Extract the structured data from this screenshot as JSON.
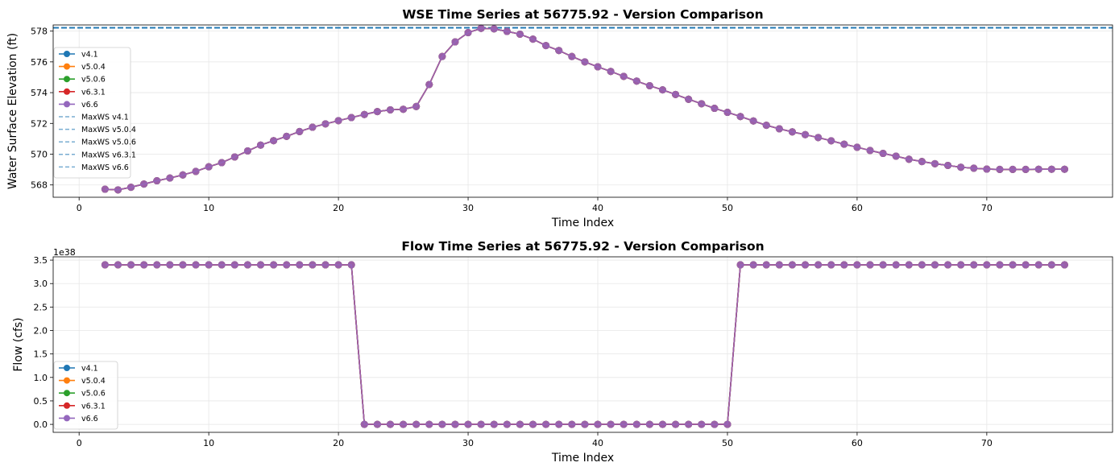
{
  "colors": {
    "v4.1": "#1f77b4",
    "v5.0.4": "#ff7f0e",
    "v5.0.6": "#2ca02c",
    "v6.3.1": "#d62728",
    "v6.6": "#9467bd",
    "overlay_line": "#9b5fb0",
    "maxws_line": "#1f77b4"
  },
  "chart_data": [
    {
      "type": "line",
      "title": "WSE Time Series at 56775.92 - Version Comparison",
      "xlabel": "Time Index",
      "ylabel": "Water Surface Elevation (ft)",
      "xlim": [
        -2,
        79.7
      ],
      "ylim": [
        567.2,
        578.4
      ],
      "xticks": [
        0,
        10,
        20,
        30,
        40,
        50,
        60,
        70
      ],
      "yticks": [
        568,
        570,
        572,
        574,
        576,
        578
      ],
      "grid": true,
      "legend_position": "center-left",
      "legend": [
        "v4.1",
        "v5.0.4",
        "v5.0.6",
        "v6.3.1",
        "v6.6",
        "MaxWS v4.1",
        "MaxWS v5.0.4",
        "MaxWS v5.0.6",
        "MaxWS v6.3.1",
        "MaxWS v6.6"
      ],
      "x": [
        2,
        3,
        4,
        5,
        6,
        7,
        8,
        9,
        10,
        11,
        12,
        13,
        14,
        15,
        16,
        17,
        18,
        19,
        20,
        21,
        22,
        23,
        24,
        25,
        26,
        27,
        28,
        29,
        30,
        31,
        32,
        33,
        34,
        35,
        36,
        37,
        38,
        39,
        40,
        41,
        42,
        43,
        44,
        45,
        46,
        47,
        48,
        49,
        50,
        51,
        52,
        53,
        54,
        55,
        56,
        57,
        58,
        59,
        60,
        61,
        62,
        63,
        64,
        65,
        66,
        67,
        68,
        69,
        70,
        71,
        72,
        73,
        74,
        75,
        76
      ],
      "series": [
        {
          "name": "v4.1",
          "values": [
            567.72,
            567.68,
            567.85,
            568.06,
            568.27,
            568.45,
            568.65,
            568.88,
            569.18,
            569.45,
            569.82,
            570.21,
            570.59,
            570.88,
            571.16,
            571.47,
            571.75,
            571.97,
            572.18,
            572.38,
            572.58,
            572.77,
            572.88,
            572.92,
            573.1,
            574.53,
            576.35,
            577.3,
            577.9,
            578.18,
            578.15,
            577.98,
            577.8,
            577.48,
            577.06,
            576.74,
            576.35,
            576.0,
            575.68,
            575.38,
            575.06,
            574.75,
            574.45,
            574.18,
            573.88,
            573.57,
            573.28,
            572.98,
            572.72,
            572.45,
            572.16,
            571.88,
            571.65,
            571.45,
            571.27,
            571.08,
            570.87,
            570.65,
            570.45,
            570.24,
            570.05,
            569.87,
            569.67,
            569.52,
            569.38,
            569.27,
            569.15,
            569.09,
            569.03,
            569.01,
            569.01,
            569.01,
            569.02,
            569.02,
            569.02
          ]
        },
        {
          "name": "v5.0.4",
          "values": [
            567.72,
            567.68,
            567.85,
            568.06,
            568.27,
            568.45,
            568.65,
            568.88,
            569.18,
            569.45,
            569.82,
            570.21,
            570.59,
            570.88,
            571.16,
            571.47,
            571.75,
            571.97,
            572.18,
            572.38,
            572.58,
            572.77,
            572.88,
            572.92,
            573.1,
            574.53,
            576.35,
            577.3,
            577.9,
            578.18,
            578.15,
            577.98,
            577.8,
            577.48,
            577.06,
            576.74,
            576.35,
            576.0,
            575.68,
            575.38,
            575.06,
            574.75,
            574.45,
            574.18,
            573.88,
            573.57,
            573.28,
            572.98,
            572.72,
            572.45,
            572.16,
            571.88,
            571.65,
            571.45,
            571.27,
            571.08,
            570.87,
            570.65,
            570.45,
            570.24,
            570.05,
            569.87,
            569.67,
            569.52,
            569.38,
            569.27,
            569.15,
            569.09,
            569.03,
            569.01,
            569.01,
            569.01,
            569.02,
            569.02,
            569.02
          ]
        },
        {
          "name": "v5.0.6",
          "values": [
            567.72,
            567.68,
            567.85,
            568.06,
            568.27,
            568.45,
            568.65,
            568.88,
            569.18,
            569.45,
            569.82,
            570.21,
            570.59,
            570.88,
            571.16,
            571.47,
            571.75,
            571.97,
            572.18,
            572.38,
            572.58,
            572.77,
            572.88,
            572.92,
            573.1,
            574.53,
            576.35,
            577.3,
            577.9,
            578.18,
            578.15,
            577.98,
            577.8,
            577.48,
            577.06,
            576.74,
            576.35,
            576.0,
            575.68,
            575.38,
            575.06,
            574.75,
            574.45,
            574.18,
            573.88,
            573.57,
            573.28,
            572.98,
            572.72,
            572.45,
            572.16,
            571.88,
            571.65,
            571.45,
            571.27,
            571.08,
            570.87,
            570.65,
            570.45,
            570.24,
            570.05,
            569.87,
            569.67,
            569.52,
            569.38,
            569.27,
            569.15,
            569.09,
            569.03,
            569.01,
            569.01,
            569.01,
            569.02,
            569.02,
            569.02
          ]
        },
        {
          "name": "v6.3.1",
          "values": [
            567.72,
            567.68,
            567.85,
            568.06,
            568.27,
            568.45,
            568.65,
            568.88,
            569.18,
            569.45,
            569.82,
            570.21,
            570.59,
            570.88,
            571.16,
            571.47,
            571.75,
            571.97,
            572.18,
            572.38,
            572.58,
            572.77,
            572.88,
            572.92,
            573.1,
            574.53,
            576.35,
            577.3,
            577.9,
            578.18,
            578.15,
            577.98,
            577.8,
            577.48,
            577.06,
            576.74,
            576.35,
            576.0,
            575.68,
            575.38,
            575.06,
            574.75,
            574.45,
            574.18,
            573.88,
            573.57,
            573.28,
            572.98,
            572.72,
            572.45,
            572.16,
            571.88,
            571.65,
            571.45,
            571.27,
            571.08,
            570.87,
            570.65,
            570.45,
            570.24,
            570.05,
            569.87,
            569.67,
            569.52,
            569.38,
            569.27,
            569.15,
            569.09,
            569.03,
            569.01,
            569.01,
            569.01,
            569.02,
            569.02,
            569.02
          ]
        },
        {
          "name": "v6.6",
          "values": [
            567.72,
            567.68,
            567.85,
            568.06,
            568.27,
            568.45,
            568.65,
            568.88,
            569.18,
            569.45,
            569.82,
            570.21,
            570.59,
            570.88,
            571.16,
            571.47,
            571.75,
            571.97,
            572.18,
            572.38,
            572.58,
            572.77,
            572.88,
            572.92,
            573.1,
            574.53,
            576.35,
            577.3,
            577.9,
            578.18,
            578.15,
            577.98,
            577.8,
            577.48,
            577.06,
            576.74,
            576.35,
            576.0,
            575.68,
            575.38,
            575.06,
            574.75,
            574.45,
            574.18,
            573.88,
            573.57,
            573.28,
            572.98,
            572.72,
            572.45,
            572.16,
            571.88,
            571.65,
            571.45,
            571.27,
            571.08,
            570.87,
            570.65,
            570.45,
            570.24,
            570.05,
            569.87,
            569.67,
            569.52,
            569.38,
            569.27,
            569.15,
            569.09,
            569.03,
            569.01,
            569.01,
            569.01,
            569.02,
            569.02,
            569.02
          ]
        }
      ],
      "hlines": [
        {
          "name": "MaxWS v4.1",
          "value": 578.22
        },
        {
          "name": "MaxWS v5.0.4",
          "value": 578.22
        },
        {
          "name": "MaxWS v5.0.6",
          "value": 578.22
        },
        {
          "name": "MaxWS v6.3.1",
          "value": 578.22
        },
        {
          "name": "MaxWS v6.6",
          "value": 578.22
        }
      ]
    },
    {
      "type": "line",
      "title": "Flow Time Series at 56775.92 - Version Comparison",
      "xlabel": "Time Index",
      "ylabel": "Flow (cfs)",
      "offset_label": "1e38",
      "xlim": [
        -2,
        79.7
      ],
      "ylim": [
        -0.17,
        3.57
      ],
      "xticks": [
        0,
        10,
        20,
        30,
        40,
        50,
        60,
        70
      ],
      "yticks": [
        0.0,
        0.5,
        1.0,
        1.5,
        2.0,
        2.5,
        3.0,
        3.5
      ],
      "ytick_labels": [
        "0.0",
        "0.5",
        "1.0",
        "1.5",
        "2.0",
        "2.5",
        "3.0",
        "3.5"
      ],
      "grid": true,
      "legend_position": "bottom-left",
      "legend": [
        "v4.1",
        "v5.0.4",
        "v5.0.6",
        "v6.3.1",
        "v6.6"
      ],
      "x": [
        2,
        3,
        4,
        5,
        6,
        7,
        8,
        9,
        10,
        11,
        12,
        13,
        14,
        15,
        16,
        17,
        18,
        19,
        20,
        21,
        22,
        23,
        24,
        25,
        26,
        27,
        28,
        29,
        30,
        31,
        32,
        33,
        34,
        35,
        36,
        37,
        38,
        39,
        40,
        41,
        42,
        43,
        44,
        45,
        46,
        47,
        48,
        49,
        50,
        51,
        52,
        53,
        54,
        55,
        56,
        57,
        58,
        59,
        60,
        61,
        62,
        63,
        64,
        65,
        66,
        67,
        68,
        69,
        70,
        71,
        72,
        73,
        74,
        75,
        76
      ],
      "series": [
        {
          "name": "v4.1",
          "values": [
            3.4,
            3.4,
            3.4,
            3.4,
            3.4,
            3.4,
            3.4,
            3.4,
            3.4,
            3.4,
            3.4,
            3.4,
            3.4,
            3.4,
            3.4,
            3.4,
            3.4,
            3.4,
            3.4,
            3.4,
            0,
            0,
            0,
            0,
            0,
            0,
            0,
            0,
            0,
            0,
            0,
            0,
            0,
            0,
            0,
            0,
            0,
            0,
            0,
            0,
            0,
            0,
            0,
            0,
            0,
            0,
            0,
            0,
            0,
            3.4,
            3.4,
            3.4,
            3.4,
            3.4,
            3.4,
            3.4,
            3.4,
            3.4,
            3.4,
            3.4,
            3.4,
            3.4,
            3.4,
            3.4,
            3.4,
            3.4,
            3.4,
            3.4,
            3.4,
            3.4,
            3.4,
            3.4,
            3.4,
            3.4,
            3.4
          ]
        },
        {
          "name": "v5.0.4",
          "values": [
            3.4,
            3.4,
            3.4,
            3.4,
            3.4,
            3.4,
            3.4,
            3.4,
            3.4,
            3.4,
            3.4,
            3.4,
            3.4,
            3.4,
            3.4,
            3.4,
            3.4,
            3.4,
            3.4,
            3.4,
            0,
            0,
            0,
            0,
            0,
            0,
            0,
            0,
            0,
            0,
            0,
            0,
            0,
            0,
            0,
            0,
            0,
            0,
            0,
            0,
            0,
            0,
            0,
            0,
            0,
            0,
            0,
            0,
            0,
            3.4,
            3.4,
            3.4,
            3.4,
            3.4,
            3.4,
            3.4,
            3.4,
            3.4,
            3.4,
            3.4,
            3.4,
            3.4,
            3.4,
            3.4,
            3.4,
            3.4,
            3.4,
            3.4,
            3.4,
            3.4,
            3.4,
            3.4,
            3.4,
            3.4,
            3.4
          ]
        },
        {
          "name": "v5.0.6",
          "values": [
            3.4,
            3.4,
            3.4,
            3.4,
            3.4,
            3.4,
            3.4,
            3.4,
            3.4,
            3.4,
            3.4,
            3.4,
            3.4,
            3.4,
            3.4,
            3.4,
            3.4,
            3.4,
            3.4,
            3.4,
            0,
            0,
            0,
            0,
            0,
            0,
            0,
            0,
            0,
            0,
            0,
            0,
            0,
            0,
            0,
            0,
            0,
            0,
            0,
            0,
            0,
            0,
            0,
            0,
            0,
            0,
            0,
            0,
            0,
            3.4,
            3.4,
            3.4,
            3.4,
            3.4,
            3.4,
            3.4,
            3.4,
            3.4,
            3.4,
            3.4,
            3.4,
            3.4,
            3.4,
            3.4,
            3.4,
            3.4,
            3.4,
            3.4,
            3.4,
            3.4,
            3.4,
            3.4,
            3.4,
            3.4,
            3.4
          ]
        },
        {
          "name": "v6.3.1",
          "values": [
            3.4,
            3.4,
            3.4,
            3.4,
            3.4,
            3.4,
            3.4,
            3.4,
            3.4,
            3.4,
            3.4,
            3.4,
            3.4,
            3.4,
            3.4,
            3.4,
            3.4,
            3.4,
            3.4,
            3.4,
            0,
            0,
            0,
            0,
            0,
            0,
            0,
            0,
            0,
            0,
            0,
            0,
            0,
            0,
            0,
            0,
            0,
            0,
            0,
            0,
            0,
            0,
            0,
            0,
            0,
            0,
            0,
            0,
            0,
            3.4,
            3.4,
            3.4,
            3.4,
            3.4,
            3.4,
            3.4,
            3.4,
            3.4,
            3.4,
            3.4,
            3.4,
            3.4,
            3.4,
            3.4,
            3.4,
            3.4,
            3.4,
            3.4,
            3.4,
            3.4,
            3.4,
            3.4,
            3.4,
            3.4,
            3.4
          ]
        },
        {
          "name": "v6.6",
          "values": [
            3.4,
            3.4,
            3.4,
            3.4,
            3.4,
            3.4,
            3.4,
            3.4,
            3.4,
            3.4,
            3.4,
            3.4,
            3.4,
            3.4,
            3.4,
            3.4,
            3.4,
            3.4,
            3.4,
            3.4,
            0,
            0,
            0,
            0,
            0,
            0,
            0,
            0,
            0,
            0,
            0,
            0,
            0,
            0,
            0,
            0,
            0,
            0,
            0,
            0,
            0,
            0,
            0,
            0,
            0,
            0,
            0,
            0,
            0,
            3.4,
            3.4,
            3.4,
            3.4,
            3.4,
            3.4,
            3.4,
            3.4,
            3.4,
            3.4,
            3.4,
            3.4,
            3.4,
            3.4,
            3.4,
            3.4,
            3.4,
            3.4,
            3.4,
            3.4,
            3.4,
            3.4,
            3.4,
            3.4,
            3.4,
            3.4
          ]
        }
      ]
    }
  ]
}
